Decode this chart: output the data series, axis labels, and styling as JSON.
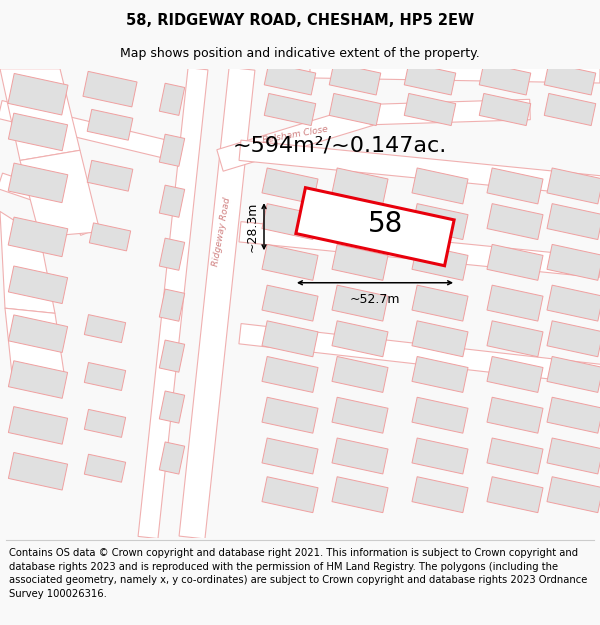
{
  "title": "58, RIDGEWAY ROAD, CHESHAM, HP5 2EW",
  "subtitle": "Map shows position and indicative extent of the property.",
  "area_text": "~594m²/~0.147ac.",
  "width_label": "~52.7m",
  "height_label": "~28.3m",
  "number_label": "58",
  "footer_text": "Contains OS data © Crown copyright and database right 2021. This information is subject to Crown copyright and database rights 2023 and is reproduced with the permission of HM Land Registry. The polygons (including the associated geometry, namely x, y co-ordinates) are subject to Crown copyright and database rights 2023 Ordnance Survey 100026316.",
  "bg_color": "#f9f9f9",
  "map_bg_color": "#ffffff",
  "road_line_color": "#f0b0b0",
  "building_fill": "#e0e0e0",
  "building_edge": "#f0a0a0",
  "highlight_red": "#e8000c",
  "street_label_color": "#d08080",
  "title_fontsize": 10.5,
  "subtitle_fontsize": 9,
  "area_fontsize": 16,
  "number_fontsize": 20,
  "dim_fontsize": 9,
  "footer_fontsize": 7.2,
  "map_tilt_deg": -12
}
